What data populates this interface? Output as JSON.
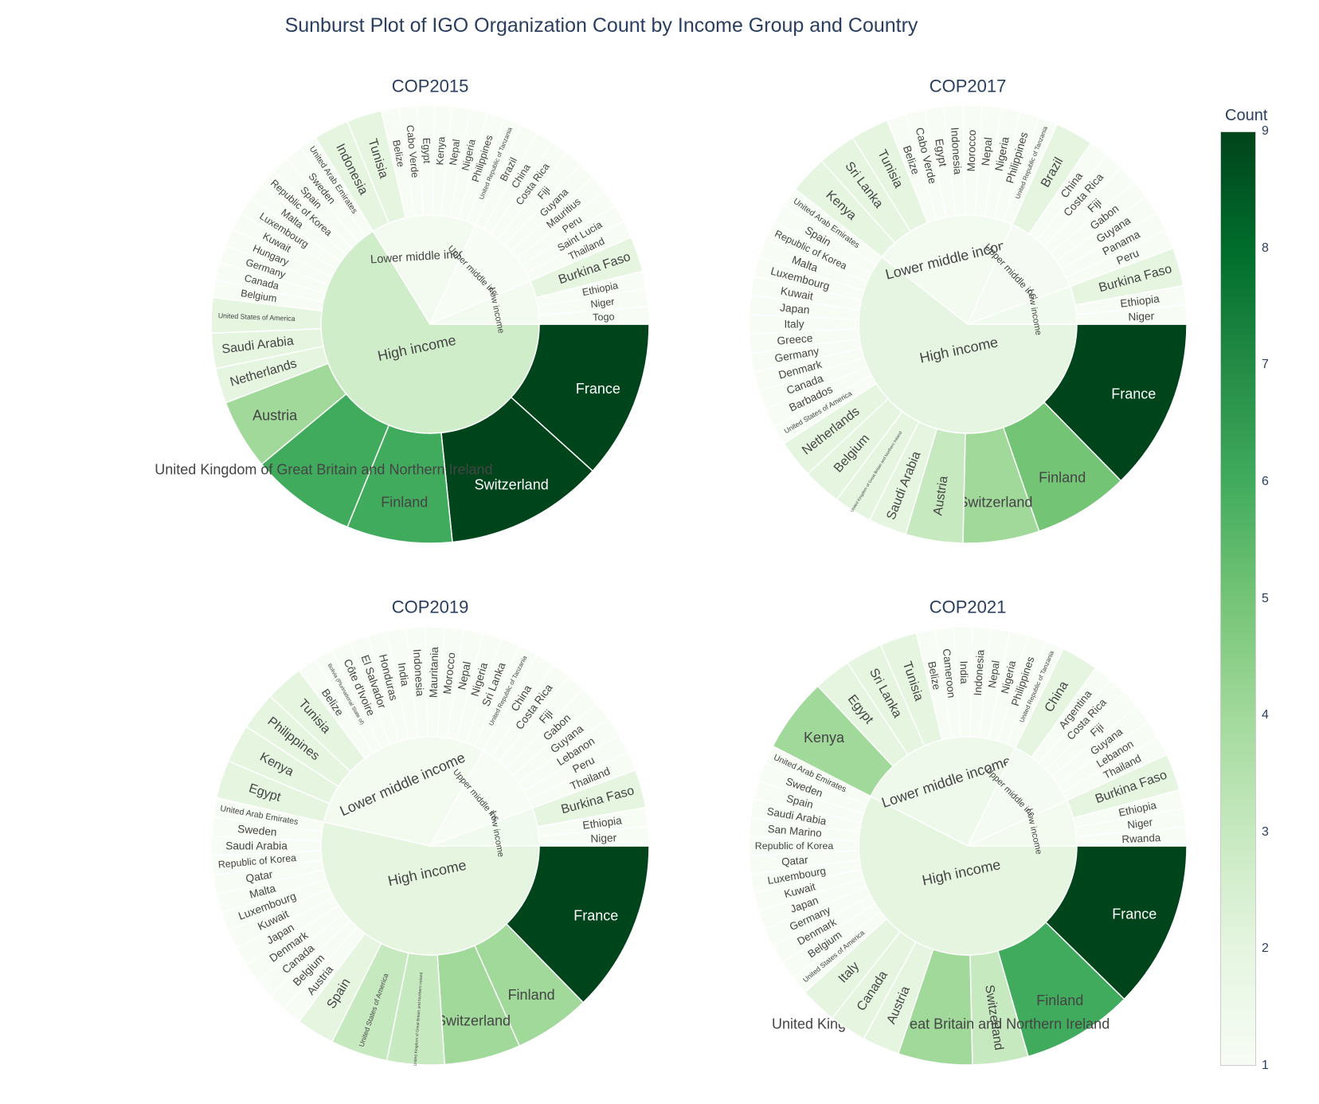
{
  "title": "Sunburst Plot of IGO Organization Count by Income Group and Country",
  "colorscale": {
    "title": "Count",
    "min": 1,
    "max": 9,
    "ticks": [
      1,
      2,
      3,
      4,
      5,
      6,
      7,
      8,
      9
    ],
    "colors": [
      "#f7fcf5",
      "#e5f5e0",
      "#c7e9c0",
      "#a1d99b",
      "#74c476",
      "#41ab5d",
      "#238b45",
      "#006d2c",
      "#00441b"
    ]
  },
  "chart_data": [
    {
      "type": "sunburst",
      "title": "COP2015",
      "groups": [
        {
          "name": "High income",
          "children": [
            {
              "name": "France",
              "value": 9
            },
            {
              "name": "Switzerland",
              "value": 9
            },
            {
              "name": "Finland",
              "value": 6
            },
            {
              "name": "United Kingdom of Great Britain and Northern Ireland",
              "value": 6
            },
            {
              "name": "Austria",
              "value": 4
            },
            {
              "name": "Netherlands",
              "value": 2
            },
            {
              "name": "Saudi Arabia",
              "value": 2
            },
            {
              "name": "United States of America",
              "value": 2
            },
            {
              "name": "Belgium",
              "value": 1
            },
            {
              "name": "Canada",
              "value": 1
            },
            {
              "name": "Germany",
              "value": 1
            },
            {
              "name": "Hungary",
              "value": 1
            },
            {
              "name": "Kuwait",
              "value": 1
            },
            {
              "name": "Luxembourg",
              "value": 1
            },
            {
              "name": "Malta",
              "value": 1
            },
            {
              "name": "Republic of Korea",
              "value": 1
            },
            {
              "name": "Spain",
              "value": 1
            },
            {
              "name": "Sweden",
              "value": 1
            },
            {
              "name": "United Arab Emirates",
              "value": 1
            }
          ]
        },
        {
          "name": "Lower middle income",
          "children": [
            {
              "name": "Indonesia",
              "value": 2
            },
            {
              "name": "Tunisia",
              "value": 2
            },
            {
              "name": "Belize",
              "value": 1
            },
            {
              "name": "Cabo Verde",
              "value": 1
            },
            {
              "name": "Egypt",
              "value": 1
            },
            {
              "name": "Kenya",
              "value": 1
            },
            {
              "name": "Nepal",
              "value": 1
            },
            {
              "name": "Nigeria",
              "value": 1
            },
            {
              "name": "Philippines",
              "value": 1
            },
            {
              "name": "United Republic of Tanzania",
              "value": 1
            }
          ]
        },
        {
          "name": "Upper middle income",
          "children": [
            {
              "name": "Brazil",
              "value": 1
            },
            {
              "name": "China",
              "value": 1
            },
            {
              "name": "Costa Rica",
              "value": 1
            },
            {
              "name": "Fiji",
              "value": 1
            },
            {
              "name": "Guyana",
              "value": 1
            },
            {
              "name": "Mauritius",
              "value": 1
            },
            {
              "name": "Peru",
              "value": 1
            },
            {
              "name": "Saint Lucia",
              "value": 1
            },
            {
              "name": "Thailand",
              "value": 1
            }
          ]
        },
        {
          "name": "Low income",
          "children": [
            {
              "name": "Burkina Faso",
              "value": 2
            },
            {
              "name": "Ethiopia",
              "value": 1
            },
            {
              "name": "Niger",
              "value": 1
            },
            {
              "name": "Togo",
              "value": 1
            }
          ]
        }
      ]
    },
    {
      "type": "sunburst",
      "title": "COP2017",
      "groups": [
        {
          "name": "High income",
          "children": [
            {
              "name": "France",
              "value": 9
            },
            {
              "name": "Finland",
              "value": 5
            },
            {
              "name": "Switzerland",
              "value": 4
            },
            {
              "name": "Austria",
              "value": 3
            },
            {
              "name": "Saudi Arabia",
              "value": 2
            },
            {
              "name": "United Kingdom of Great Britain and Northern Ireland",
              "value": 2
            },
            {
              "name": "Belgium",
              "value": 2
            },
            {
              "name": "Netherlands",
              "value": 2
            },
            {
              "name": "United States of America",
              "value": 1
            },
            {
              "name": "Barbados",
              "value": 1
            },
            {
              "name": "Canada",
              "value": 1
            },
            {
              "name": "Denmark",
              "value": 1
            },
            {
              "name": "Germany",
              "value": 1
            },
            {
              "name": "Greece",
              "value": 1
            },
            {
              "name": "Italy",
              "value": 1
            },
            {
              "name": "Japan",
              "value": 1
            },
            {
              "name": "Kuwait",
              "value": 1
            },
            {
              "name": "Luxembourg",
              "value": 1
            },
            {
              "name": "Malta",
              "value": 1
            },
            {
              "name": "Republic of Korea",
              "value": 1
            },
            {
              "name": "Spain",
              "value": 1
            },
            {
              "name": "United Arab Emirates",
              "value": 1
            }
          ]
        },
        {
          "name": "Lower middle income",
          "children": [
            {
              "name": "Kenya",
              "value": 2
            },
            {
              "name": "Sri Lanka",
              "value": 2
            },
            {
              "name": "Tunisia",
              "value": 2
            },
            {
              "name": "Belize",
              "value": 1
            },
            {
              "name": "Cabo Verde",
              "value": 1
            },
            {
              "name": "Egypt",
              "value": 1
            },
            {
              "name": "Indonesia",
              "value": 1
            },
            {
              "name": "Morocco",
              "value": 1
            },
            {
              "name": "Nepal",
              "value": 1
            },
            {
              "name": "Nigeria",
              "value": 1
            },
            {
              "name": "Philippines",
              "value": 1
            },
            {
              "name": "United Republic of Tanzania",
              "value": 1
            }
          ]
        },
        {
          "name": "Upper middle income",
          "children": [
            {
              "name": "Brazil",
              "value": 2
            },
            {
              "name": "China",
              "value": 1
            },
            {
              "name": "Costa Rica",
              "value": 1
            },
            {
              "name": "Fiji",
              "value": 1
            },
            {
              "name": "Gabon",
              "value": 1
            },
            {
              "name": "Guyana",
              "value": 1
            },
            {
              "name": "Panama",
              "value": 1
            },
            {
              "name": "Peru",
              "value": 1
            }
          ]
        },
        {
          "name": "Low income",
          "children": [
            {
              "name": "Burkina Faso",
              "value": 2
            },
            {
              "name": "Ethiopia",
              "value": 1
            },
            {
              "name": "Niger",
              "value": 1
            }
          ]
        }
      ]
    },
    {
      "type": "sunburst",
      "title": "COP2019",
      "groups": [
        {
          "name": "High income",
          "children": [
            {
              "name": "France",
              "value": 9
            },
            {
              "name": "Finland",
              "value": 4
            },
            {
              "name": "Switzerland",
              "value": 4
            },
            {
              "name": "United Kingdom of Great Britain and Northern Ireland",
              "value": 3
            },
            {
              "name": "United States of America",
              "value": 3
            },
            {
              "name": "Spain",
              "value": 2
            },
            {
              "name": "Austria",
              "value": 1
            },
            {
              "name": "Belgium",
              "value": 1
            },
            {
              "name": "Canada",
              "value": 1
            },
            {
              "name": "Denmark",
              "value": 1
            },
            {
              "name": "Japan",
              "value": 1
            },
            {
              "name": "Kuwait",
              "value": 1
            },
            {
              "name": "Luxembourg",
              "value": 1
            },
            {
              "name": "Malta",
              "value": 1
            },
            {
              "name": "Qatar",
              "value": 1
            },
            {
              "name": "Republic of Korea",
              "value": 1
            },
            {
              "name": "Saudi Arabia",
              "value": 1
            },
            {
              "name": "Sweden",
              "value": 1
            },
            {
              "name": "United Arab Emirates",
              "value": 1
            }
          ]
        },
        {
          "name": "Lower middle income",
          "children": [
            {
              "name": "Egypt",
              "value": 2
            },
            {
              "name": "Kenya",
              "value": 2
            },
            {
              "name": "Philippines",
              "value": 2
            },
            {
              "name": "Tunisia",
              "value": 2
            },
            {
              "name": "Belize",
              "value": 1
            },
            {
              "name": "Bolivia (Plurinational State of)",
              "value": 1
            },
            {
              "name": "Côte d'Ivoire",
              "value": 1
            },
            {
              "name": "El Salvador",
              "value": 1
            },
            {
              "name": "Honduras",
              "value": 1
            },
            {
              "name": "India",
              "value": 1
            },
            {
              "name": "Indonesia",
              "value": 1
            },
            {
              "name": "Mauritania",
              "value": 1
            },
            {
              "name": "Morocco",
              "value": 1
            },
            {
              "name": "Nepal",
              "value": 1
            },
            {
              "name": "Nigeria",
              "value": 1
            },
            {
              "name": "Sri Lanka",
              "value": 1
            },
            {
              "name": "United Republic of Tanzania",
              "value": 1
            }
          ]
        },
        {
          "name": "Upper middle income",
          "children": [
            {
              "name": "China",
              "value": 1
            },
            {
              "name": "Costa Rica",
              "value": 1
            },
            {
              "name": "Fiji",
              "value": 1
            },
            {
              "name": "Gabon",
              "value": 1
            },
            {
              "name": "Guyana",
              "value": 1
            },
            {
              "name": "Lebanon",
              "value": 1
            },
            {
              "name": "Peru",
              "value": 1
            },
            {
              "name": "Thailand",
              "value": 1
            }
          ]
        },
        {
          "name": "Low income",
          "children": [
            {
              "name": "Burkina Faso",
              "value": 2
            },
            {
              "name": "Ethiopia",
              "value": 1
            },
            {
              "name": "Niger",
              "value": 1
            }
          ]
        }
      ]
    },
    {
      "type": "sunburst",
      "title": "COP2021",
      "groups": [
        {
          "name": "High income",
          "children": [
            {
              "name": "France",
              "value": 9
            },
            {
              "name": "Finland",
              "value": 6
            },
            {
              "name": "Switzerland",
              "value": 3
            },
            {
              "name": "United Kingdom of Great Britain and Northern Ireland",
              "value": 4
            },
            {
              "name": "Austria",
              "value": 2
            },
            {
              "name": "Canada",
              "value": 2
            },
            {
              "name": "Italy",
              "value": 2
            },
            {
              "name": "United States of America",
              "value": 1
            },
            {
              "name": "Belgium",
              "value": 1
            },
            {
              "name": "Denmark",
              "value": 1
            },
            {
              "name": "Germany",
              "value": 1
            },
            {
              "name": "Japan",
              "value": 1
            },
            {
              "name": "Kuwait",
              "value": 1
            },
            {
              "name": "Luxembourg",
              "value": 1
            },
            {
              "name": "Qatar",
              "value": 1
            },
            {
              "name": "Republic of Korea",
              "value": 1
            },
            {
              "name": "San Marino",
              "value": 1
            },
            {
              "name": "Saudi Arabia",
              "value": 1
            },
            {
              "name": "Spain",
              "value": 1
            },
            {
              "name": "Sweden",
              "value": 1
            },
            {
              "name": "United Arab Emirates",
              "value": 1
            }
          ]
        },
        {
          "name": "Lower middle income",
          "children": [
            {
              "name": "Kenya",
              "value": 4
            },
            {
              "name": "Egypt",
              "value": 2
            },
            {
              "name": "Sri Lanka",
              "value": 2
            },
            {
              "name": "Tunisia",
              "value": 2
            },
            {
              "name": "Belize",
              "value": 1
            },
            {
              "name": "Cameroon",
              "value": 1
            },
            {
              "name": "India",
              "value": 1
            },
            {
              "name": "Indonesia",
              "value": 1
            },
            {
              "name": "Nepal",
              "value": 1
            },
            {
              "name": "Nigeria",
              "value": 1
            },
            {
              "name": "Philippines",
              "value": 1
            },
            {
              "name": "United Republic of Tanzania",
              "value": 1
            }
          ]
        },
        {
          "name": "Upper middle income",
          "children": [
            {
              "name": "China",
              "value": 2
            },
            {
              "name": "Argentina",
              "value": 1
            },
            {
              "name": "Costa Rica",
              "value": 1
            },
            {
              "name": "Fiji",
              "value": 1
            },
            {
              "name": "Guyana",
              "value": 1
            },
            {
              "name": "Lebanon",
              "value": 1
            },
            {
              "name": "Thailand",
              "value": 1
            }
          ]
        },
        {
          "name": "Low income",
          "children": [
            {
              "name": "Burkina Faso",
              "value": 2
            },
            {
              "name": "Ethiopia",
              "value": 1
            },
            {
              "name": "Niger",
              "value": 1
            },
            {
              "name": "Rwanda",
              "value": 1
            }
          ]
        }
      ]
    }
  ]
}
